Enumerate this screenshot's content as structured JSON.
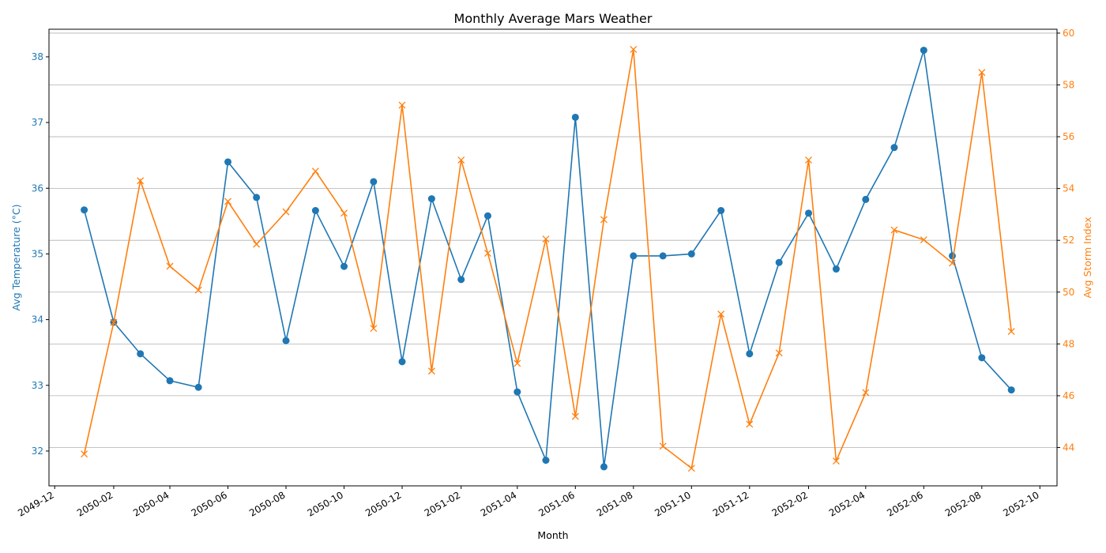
{
  "chart_data": {
    "type": "line",
    "title": "Monthly Average Mars Weather",
    "xlabel": "Month",
    "x_ticks": [
      "2049-12",
      "2050-02",
      "2050-04",
      "2050-06",
      "2050-08",
      "2050-10",
      "2050-12",
      "2051-02",
      "2051-04",
      "2051-06",
      "2051-08",
      "2051-10",
      "2051-12",
      "2052-02",
      "2052-04",
      "2052-06",
      "2052-08",
      "2052-10"
    ],
    "x": [
      "2050-01",
      "2050-02",
      "2050-03",
      "2050-04",
      "2050-05",
      "2050-06",
      "2050-07",
      "2050-08",
      "2050-09",
      "2050-10",
      "2050-11",
      "2050-12",
      "2051-01",
      "2051-02",
      "2051-03",
      "2051-04",
      "2051-05",
      "2051-06",
      "2051-07",
      "2051-08",
      "2051-09",
      "2051-10",
      "2051-11",
      "2051-12",
      "2052-01",
      "2052-02",
      "2052-03",
      "2052-04",
      "2052-05",
      "2052-06",
      "2052-07",
      "2052-08",
      "2052-09"
    ],
    "x_range": [
      "2049-11-25",
      "2052-10-19"
    ],
    "grid": "horizontal, right axis",
    "series": [
      {
        "name": "",
        "axis": "left",
        "ylabel": "Avg Temperature (°C)",
        "color": "#1f77b4",
        "marker": "circle",
        "ylim": [
          31.47,
          38.42
        ],
        "y_ticks": [
          "32",
          "33",
          "34",
          "35",
          "36",
          "37",
          "38"
        ],
        "values": [
          35.67,
          33.96,
          33.48,
          33.07,
          32.97,
          36.4,
          35.86,
          33.68,
          35.66,
          34.81,
          36.1,
          33.36,
          35.84,
          34.61,
          35.58,
          32.9,
          31.86,
          37.08,
          31.76,
          34.97,
          34.97,
          35.0,
          35.66,
          33.48,
          34.87,
          35.62,
          34.77,
          35.83,
          36.62,
          38.1,
          34.97,
          33.42,
          32.93
        ]
      },
      {
        "name": "",
        "axis": "right",
        "ylabel": "Avg Storm Index",
        "color": "#ff7f0e",
        "marker": "x",
        "ylim": [
          42.52,
          60.15
        ],
        "y_ticks": [
          "44",
          "46",
          "48",
          "50",
          "52",
          "54",
          "56",
          "58",
          "60"
        ],
        "values": [
          43.75,
          48.83,
          54.3,
          51.0,
          50.08,
          53.5,
          51.85,
          53.1,
          54.67,
          53.05,
          48.6,
          57.22,
          46.95,
          55.1,
          51.5,
          47.25,
          52.05,
          45.2,
          52.8,
          59.37,
          44.05,
          43.2,
          49.15,
          44.9,
          47.65,
          55.1,
          43.48,
          46.12,
          52.4,
          52.02,
          51.12,
          58.48,
          48.48
        ]
      }
    ]
  }
}
